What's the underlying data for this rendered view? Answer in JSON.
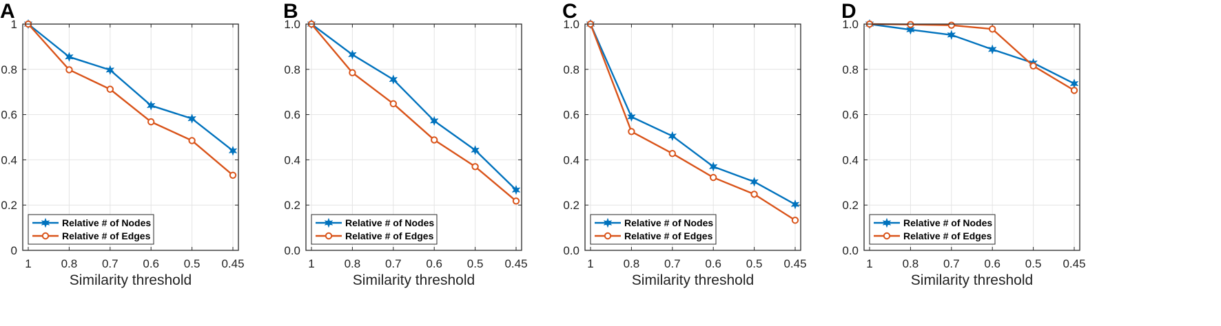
{
  "colors": {
    "nodes": "#0072BD",
    "edges": "#D95319"
  },
  "chart_data": [
    {
      "panel": "A",
      "type": "line",
      "categories": [
        "1",
        "0.8",
        "0.7",
        "0.6",
        "0.5",
        "0.45"
      ],
      "series": [
        {
          "name": "Relative # of Nodes",
          "marker": "star",
          "values": [
            1.0,
            0.855,
            0.797,
            0.64,
            0.582,
            0.44
          ]
        },
        {
          "name": "Relative # of Edges",
          "marker": "circle",
          "values": [
            1.0,
            0.798,
            0.712,
            0.568,
            0.485,
            0.332
          ]
        }
      ],
      "xlabel": "Similarity threshold",
      "ylim": [
        0,
        1
      ],
      "yticks": [
        0,
        0.2,
        0.4,
        0.6,
        0.8,
        1
      ],
      "ytick_labels": [
        "0",
        "0.2",
        "0.4",
        "0.6",
        "0.8",
        "1"
      ],
      "grid": true,
      "legend_location": "bottom-left"
    },
    {
      "panel": "B",
      "type": "line",
      "categories": [
        "1",
        "0.8",
        "0.7",
        "0.6",
        "0.5",
        "0.45"
      ],
      "series": [
        {
          "name": "Relative # of Nodes",
          "marker": "star",
          "values": [
            1.0,
            0.865,
            0.755,
            0.572,
            0.443,
            0.267
          ]
        },
        {
          "name": "Relative # of Edges",
          "marker": "circle",
          "values": [
            1.0,
            0.785,
            0.648,
            0.488,
            0.37,
            0.218
          ]
        }
      ],
      "xlabel": "Similarity threshold",
      "ylim": [
        0,
        1
      ],
      "yticks": [
        0,
        0.2,
        0.4,
        0.6,
        0.8,
        1
      ],
      "ytick_labels": [
        "0.0",
        "0.2",
        "0.4",
        "0.6",
        "0.8",
        "1.0"
      ],
      "grid": true,
      "legend_location": "bottom-left"
    },
    {
      "panel": "C",
      "type": "line",
      "categories": [
        "1",
        "0.8",
        "0.7",
        "0.6",
        "0.5",
        "0.45"
      ],
      "series": [
        {
          "name": "Relative # of Nodes",
          "marker": "star",
          "values": [
            1.0,
            0.59,
            0.505,
            0.37,
            0.303,
            0.203
          ]
        },
        {
          "name": "Relative # of Edges",
          "marker": "circle",
          "values": [
            1.0,
            0.525,
            0.428,
            0.322,
            0.248,
            0.133
          ]
        }
      ],
      "xlabel": "Similarity threshold",
      "ylim": [
        0,
        1
      ],
      "yticks": [
        0,
        0.2,
        0.4,
        0.6,
        0.8,
        1
      ],
      "ytick_labels": [
        "0.0",
        "0.2",
        "0.4",
        "0.6",
        "0.8",
        "1.0"
      ],
      "grid": true,
      "legend_location": "bottom-left"
    },
    {
      "panel": "D",
      "type": "line",
      "categories": [
        "1",
        "0.8",
        "0.7",
        "0.6",
        "0.5",
        "0.45"
      ],
      "series": [
        {
          "name": "Relative # of Nodes",
          "marker": "star",
          "values": [
            1.0,
            0.975,
            0.952,
            0.888,
            0.828,
            0.737
          ]
        },
        {
          "name": "Relative # of Edges",
          "marker": "circle",
          "values": [
            1.0,
            0.998,
            0.995,
            0.978,
            0.815,
            0.707
          ]
        }
      ],
      "xlabel": "Similarity threshold",
      "ylim": [
        0,
        1
      ],
      "yticks": [
        0,
        0.2,
        0.4,
        0.6,
        0.8,
        1
      ],
      "ytick_labels": [
        "0.0",
        "0.2",
        "0.4",
        "0.6",
        "0.8",
        "1.0"
      ],
      "grid": true,
      "legend_location": "bottom-left"
    }
  ]
}
